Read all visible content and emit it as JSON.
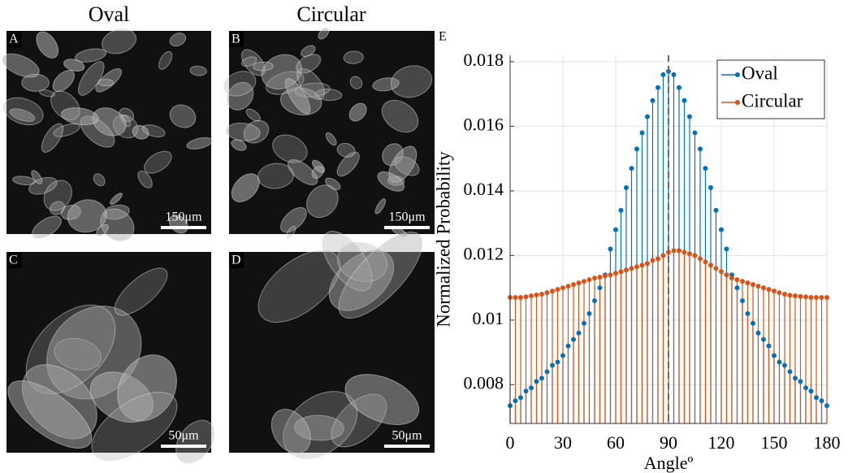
{
  "figure": {
    "headers": [
      "Oval",
      "Circular"
    ],
    "panels": [
      {
        "label": "A",
        "scale": "150μm"
      },
      {
        "label": "B",
        "scale": "150μm"
      },
      {
        "label": "C",
        "scale": "50μm"
      },
      {
        "label": "D",
        "scale": "50μm"
      }
    ],
    "chart_label": "E"
  },
  "chart_data": {
    "type": "stem",
    "xlabel": "Angleº",
    "ylabel": "Normalized Probability",
    "x": [
      0,
      3,
      6,
      9,
      12,
      15,
      18,
      21,
      24,
      27,
      30,
      33,
      36,
      39,
      42,
      45,
      48,
      51,
      54,
      57,
      60,
      63,
      66,
      69,
      72,
      75,
      78,
      81,
      84,
      87,
      90,
      93,
      96,
      99,
      102,
      105,
      108,
      111,
      114,
      117,
      120,
      123,
      126,
      129,
      132,
      135,
      138,
      141,
      144,
      147,
      150,
      153,
      156,
      159,
      162,
      165,
      168,
      171,
      174,
      177,
      180
    ],
    "series": [
      {
        "name": "Oval",
        "color": "#0072bd",
        "values": [
          0.00735,
          0.0075,
          0.0076,
          0.0078,
          0.0079,
          0.0081,
          0.0082,
          0.0084,
          0.0086,
          0.0087,
          0.0089,
          0.0092,
          0.0094,
          0.0096,
          0.0099,
          0.0102,
          0.0106,
          0.011,
          0.0114,
          0.0122,
          0.0128,
          0.0134,
          0.0141,
          0.0147,
          0.0153,
          0.0158,
          0.0163,
          0.0168,
          0.0172,
          0.0176,
          0.0177,
          0.0176,
          0.0172,
          0.0168,
          0.0163,
          0.0158,
          0.0153,
          0.0147,
          0.0141,
          0.0134,
          0.0128,
          0.0122,
          0.0114,
          0.011,
          0.0106,
          0.0102,
          0.0099,
          0.0096,
          0.0094,
          0.0092,
          0.0089,
          0.0087,
          0.0086,
          0.0084,
          0.0082,
          0.0081,
          0.0079,
          0.0078,
          0.0076,
          0.0075,
          0.00735
        ]
      },
      {
        "name": "Circular",
        "color": "#d95319",
        "values": [
          0.0107,
          0.0107,
          0.0107,
          0.01072,
          0.01075,
          0.01078,
          0.0108,
          0.01085,
          0.0109,
          0.01095,
          0.011,
          0.01105,
          0.0111,
          0.01115,
          0.0112,
          0.01125,
          0.0113,
          0.01133,
          0.01137,
          0.0114,
          0.01145,
          0.0115,
          0.01155,
          0.0116,
          0.01165,
          0.0117,
          0.01175,
          0.01185,
          0.0119,
          0.012,
          0.0121,
          0.01215,
          0.01215,
          0.0121,
          0.01205,
          0.012,
          0.0119,
          0.0118,
          0.0117,
          0.0116,
          0.0115,
          0.0114,
          0.0113,
          0.01125,
          0.0112,
          0.01115,
          0.0111,
          0.01105,
          0.011,
          0.01095,
          0.0109,
          0.01085,
          0.0108,
          0.01077,
          0.01075,
          0.01073,
          0.01072,
          0.0107,
          0.0107,
          0.0107,
          0.0107
        ]
      }
    ],
    "vline": 90,
    "xlim": [
      0,
      180
    ],
    "xticks": [
      0,
      30,
      60,
      90,
      120,
      150,
      180
    ],
    "ylim": [
      0.0068,
      0.0182
    ],
    "yticks": [
      0.008,
      0.01,
      0.012,
      0.014,
      0.016,
      0.018
    ],
    "grid": true,
    "legend": "top-right"
  }
}
